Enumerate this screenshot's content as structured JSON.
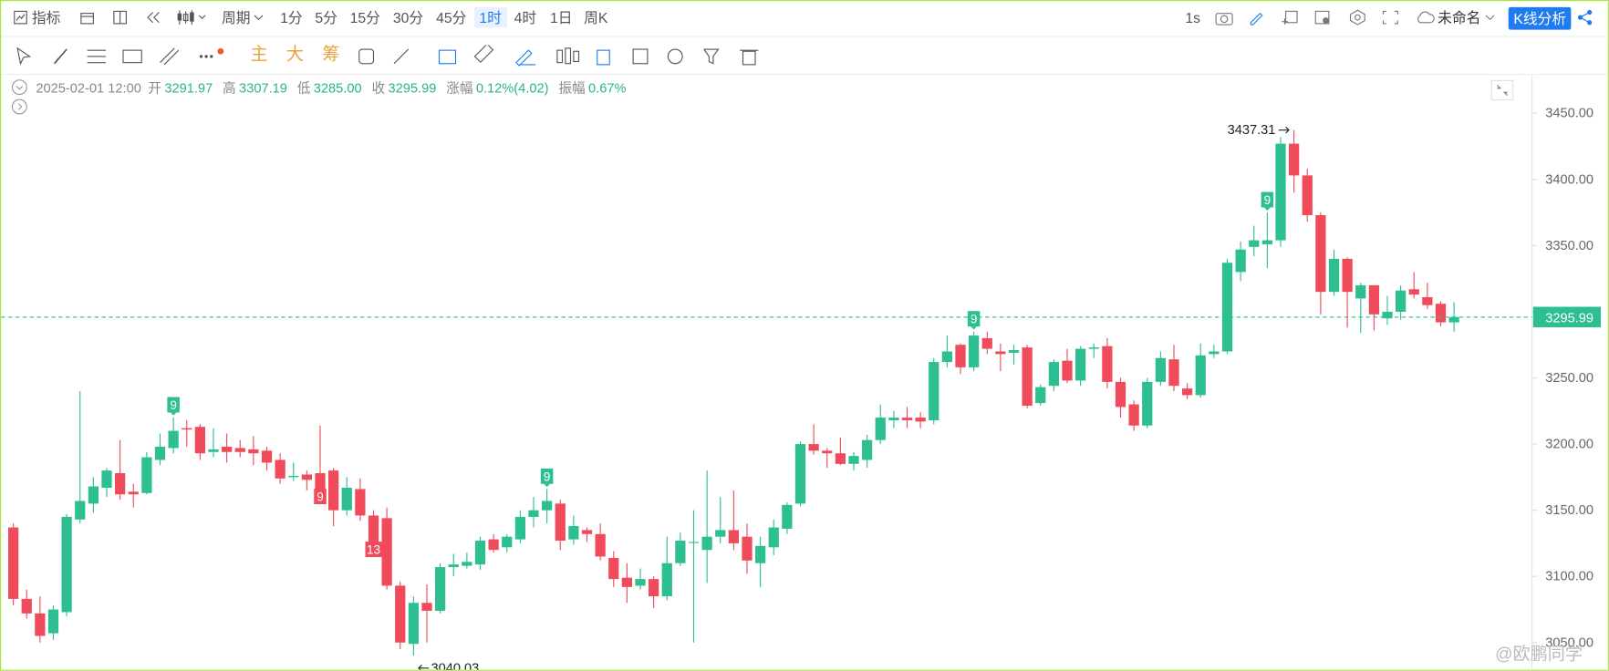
{
  "toolbar": {
    "indicator": "指标",
    "period": "周期",
    "intervals": [
      "1分",
      "5分",
      "15分",
      "30分",
      "45分",
      "1时",
      "4时",
      "1日",
      "周K"
    ],
    "active_interval": 5,
    "speed": "1s",
    "layout_name": "未命名",
    "analysis_button": "K线分析"
  },
  "drawing_toolbar": {
    "main": "主",
    "big": "大",
    "chips": "筹"
  },
  "info": {
    "datetime": "2025-02-01 12:00",
    "open_label": "开",
    "open": "3291.97",
    "high_label": "高",
    "high": "3307.19",
    "low_label": "低",
    "low": "3285.00",
    "close_label": "收",
    "close": "3295.99",
    "change_label": "涨幅",
    "change": "0.12%(4.02)",
    "amplitude_label": "振幅",
    "amplitude": "0.67%"
  },
  "watermark": "@欧鹏同学",
  "chart_data": {
    "type": "candlestick",
    "up_color": "#2dbf91",
    "down_color": "#ef4b5a",
    "open": [
      3137,
      3083,
      3072,
      3057,
      3073,
      3143,
      3155,
      3167,
      3178,
      3164,
      3163,
      3188,
      3197,
      3212,
      3213,
      3194,
      3198,
      3197,
      3196,
      3195,
      3188,
      3175,
      3177,
      3178,
      3180,
      3150,
      3166,
      3146,
      3144,
      3093,
      3049,
      3080,
      3074,
      3107,
      3108,
      3109,
      3128,
      3122,
      3128,
      3145,
      3150,
      3155,
      3128,
      3135,
      3132,
      3114,
      3099,
      3093,
      3098,
      3085,
      3110,
      3126,
      3120,
      3130,
      3135,
      3130,
      3110,
      3122,
      3136,
      3155,
      3200,
      3195,
      3193,
      3185,
      3188,
      3203,
      3218,
      3220,
      3220,
      3218,
      3262,
      3275,
      3258,
      3280,
      3270,
      3269,
      3273,
      3231,
      3244,
      3263,
      3248,
      3272,
      3274,
      3247,
      3230,
      3214,
      3247,
      3264,
      3242,
      3237,
      3268,
      3270,
      3330,
      3349,
      3351,
      3354,
      3427,
      3403,
      3373,
      3315,
      3340,
      3310,
      3320,
      3295,
      3300,
      3317,
      3311,
      3306,
      3291.97
    ],
    "high": [
      3140,
      3090,
      3085,
      3078,
      3147,
      3240,
      3175,
      3182,
      3203,
      3170,
      3194,
      3208,
      3220,
      3218,
      3215,
      3212,
      3208,
      3203,
      3206,
      3198,
      3193,
      3186,
      3180,
      3214,
      3182,
      3175,
      3174,
      3150,
      3152,
      3096,
      3085,
      3094,
      3110,
      3117,
      3118,
      3130,
      3132,
      3132,
      3150,
      3160,
      3166,
      3158,
      3146,
      3137,
      3140,
      3119,
      3110,
      3106,
      3100,
      3130,
      3133,
      3150,
      3180,
      3160,
      3165,
      3140,
      3130,
      3143,
      3156,
      3202,
      3215,
      3197,
      3205,
      3194,
      3207,
      3230,
      3225,
      3228,
      3224,
      3265,
      3282,
      3276,
      3285,
      3285,
      3276,
      3275,
      3275,
      3245,
      3264,
      3272,
      3274,
      3276,
      3280,
      3250,
      3233,
      3250,
      3270,
      3275,
      3246,
      3276,
      3275,
      3340,
      3353,
      3365,
      3375,
      3432,
      3437.31,
      3408,
      3375,
      3347,
      3341,
      3322,
      3320,
      3312,
      3320,
      3330,
      3322,
      3308,
      3307.19
    ],
    "low": [
      3078,
      3068,
      3050,
      3052,
      3070,
      3140,
      3148,
      3160,
      3158,
      3152,
      3162,
      3184,
      3193,
      3198,
      3188,
      3190,
      3186,
      3190,
      3184,
      3180,
      3170,
      3172,
      3165,
      3155,
      3138,
      3146,
      3142,
      3115,
      3090,
      3045,
      3040.03,
      3050,
      3072,
      3100,
      3106,
      3105,
      3118,
      3118,
      3125,
      3137,
      3140,
      3120,
      3124,
      3126,
      3112,
      3092,
      3080,
      3090,
      3076,
      3082,
      3108,
      3050,
      3095,
      3125,
      3120,
      3102,
      3092,
      3116,
      3132,
      3153,
      3192,
      3182,
      3184,
      3180,
      3182,
      3200,
      3212,
      3212,
      3212,
      3215,
      3258,
      3253,
      3255,
      3268,
      3255,
      3260,
      3227,
      3229,
      3240,
      3246,
      3244,
      3265,
      3242,
      3220,
      3210,
      3212,
      3244,
      3240,
      3234,
      3235,
      3265,
      3268,
      3323,
      3342,
      3333,
      3349,
      3390,
      3368,
      3298,
      3312,
      3288,
      3284,
      3286,
      3290,
      3294,
      3310,
      3302,
      3289,
      3285
    ],
    "close": [
      3083,
      3072,
      3055,
      3075,
      3145,
      3157,
      3168,
      3180,
      3162,
      3162,
      3190,
      3198,
      3210,
      3211,
      3193,
      3196,
      3194,
      3194,
      3193,
      3186,
      3174,
      3176,
      3173,
      3160,
      3150,
      3167,
      3146,
      3120,
      3093,
      3050,
      3080,
      3074,
      3107,
      3109,
      3111,
      3127,
      3120,
      3130,
      3145,
      3150,
      3157,
      3127,
      3138,
      3132,
      3115,
      3098,
      3092,
      3098,
      3085,
      3110,
      3127,
      3126,
      3130,
      3135,
      3125,
      3112,
      3123,
      3137,
      3154,
      3200,
      3195,
      3193,
      3185,
      3191,
      3203,
      3220,
      3220,
      3218,
      3217,
      3262,
      3270,
      3258,
      3282,
      3272,
      3268,
      3271,
      3229,
      3243,
      3262,
      3248,
      3272,
      3273,
      3247,
      3228,
      3214,
      3247,
      3265,
      3244,
      3237,
      3267,
      3270,
      3337,
      3347,
      3354,
      3354,
      3427,
      3403,
      3373,
      3315,
      3340,
      3315,
      3320,
      3298,
      3300,
      3316,
      3313,
      3305,
      3292,
      3295.99
    ],
    "td_labels": [
      null,
      null,
      null,
      null,
      null,
      null,
      null,
      null,
      null,
      null,
      null,
      null,
      "9",
      null,
      null,
      null,
      null,
      null,
      null,
      null,
      null,
      null,
      null,
      "9",
      null,
      null,
      null,
      "13",
      null,
      null,
      null,
      null,
      null,
      null,
      null,
      null,
      null,
      null,
      null,
      null,
      "9",
      null,
      null,
      null,
      null,
      null,
      null,
      null,
      null,
      null,
      null,
      null,
      null,
      null,
      null,
      null,
      null,
      null,
      null,
      null,
      null,
      null,
      null,
      null,
      null,
      null,
      null,
      null,
      null,
      null,
      null,
      null,
      "9",
      null,
      null,
      null,
      null,
      null,
      null,
      null,
      null,
      null,
      null,
      null,
      null,
      null,
      null,
      null,
      null,
      null,
      null,
      null,
      null,
      null,
      "9",
      null,
      null,
      null,
      null,
      null,
      null,
      null,
      null,
      null,
      null,
      null,
      null,
      null,
      null
    ],
    "ylim": [
      3031,
      3479
    ],
    "yticks": [
      {
        "value": 3050,
        "label": "3050.00"
      },
      {
        "value": 3100,
        "label": "3100.00"
      },
      {
        "value": 3150,
        "label": "3150.00"
      },
      {
        "value": 3200,
        "label": "3200.00"
      },
      {
        "value": 3250,
        "label": "3250.00"
      },
      {
        "value": 3300,
        "label": "3300.00"
      },
      {
        "value": 3350,
        "label": "3350.00"
      },
      {
        "value": 3400,
        "label": "3400.00"
      },
      {
        "value": 3450,
        "label": "3450.00"
      }
    ],
    "last_price_line": true,
    "mark_extremes": true
  }
}
